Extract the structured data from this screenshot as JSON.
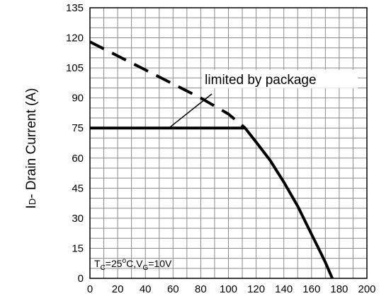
{
  "chart_data": {
    "type": "line",
    "title": "",
    "xlabel": "",
    "ylabel": "ID - Drain Current (A)",
    "ylabel_parts": {
      "main": "I",
      "sub": "D",
      "rest": "- Drain Current (A)"
    },
    "xlim": [
      0,
      200
    ],
    "ylim": [
      0,
      135
    ],
    "x_ticks": [
      0,
      20,
      40,
      60,
      80,
      100,
      120,
      140,
      160,
      180,
      200
    ],
    "y_ticks": [
      0,
      15,
      30,
      45,
      60,
      75,
      90,
      105,
      120,
      135
    ],
    "grid": true,
    "minor_grid_step": {
      "x": 10,
      "y": 5
    },
    "series": [
      {
        "style": "solid",
        "x": [
          0,
          20,
          40,
          60,
          80,
          100,
          112,
          120,
          130,
          140,
          150,
          160,
          165,
          170,
          175
        ],
        "y": [
          75,
          75,
          75,
          75,
          75,
          75,
          75,
          68,
          59,
          48,
          36,
          22,
          15,
          8,
          0
        ]
      },
      {
        "style": "dashed",
        "x": [
          0,
          20,
          40,
          60,
          80,
          100,
          112
        ],
        "y": [
          118,
          111,
          104,
          97,
          90,
          82,
          75
        ]
      }
    ],
    "annotations": [
      {
        "text": "limited by package",
        "x": 85,
        "y": 97,
        "points_to": {
          "x": 57,
          "y": 75
        }
      }
    ],
    "condition_label": {
      "parts": [
        "T",
        "C",
        "=25",
        "o",
        "C,V",
        "G",
        "=10V"
      ]
    }
  }
}
